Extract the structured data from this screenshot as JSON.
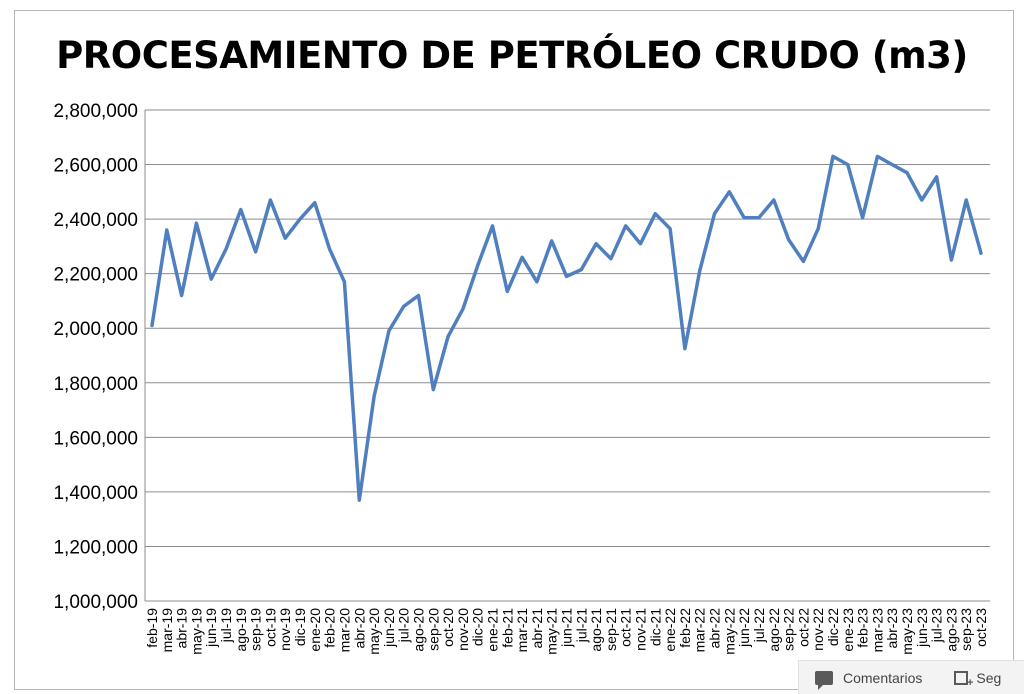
{
  "chart_data": {
    "type": "line",
    "title": "PROCESAMIENTO DE PETRÓLEO CRUDO (m3)",
    "xlabel": "",
    "ylabel": "",
    "ylim": [
      1000000,
      2800000
    ],
    "yticks": [
      "1,000,000",
      "1,200,000",
      "1,400,000",
      "1,600,000",
      "1,800,000",
      "2,000,000",
      "2,200,000",
      "2,400,000",
      "2,600,000",
      "2,800,000"
    ],
    "grid": true,
    "legend": "none",
    "color": "#4f7fbf",
    "categories": [
      "feb-19",
      "mar-19",
      "abr-19",
      "may-19",
      "jun-19",
      "jul-19",
      "ago-19",
      "sep-19",
      "oct-19",
      "nov-19",
      "dic-19",
      "ene-20",
      "feb-20",
      "mar-20",
      "abr-20",
      "may-20",
      "jun-20",
      "jul-20",
      "ago-20",
      "sep-20",
      "oct-20",
      "nov-20",
      "dic-20",
      "ene-21",
      "feb-21",
      "mar-21",
      "abr-21",
      "may-21",
      "jun-21",
      "jul-21",
      "ago-21",
      "sep-21",
      "oct-21",
      "nov-21",
      "dic-21",
      "ene-22",
      "feb-22",
      "mar-22",
      "abr-22",
      "may-22",
      "jun-22",
      "jul-22",
      "ago-22",
      "sep-22",
      "oct-22",
      "nov-22",
      "dic-22",
      "ene-23",
      "feb-23",
      "mar-23",
      "abr-23",
      "may-23",
      "jun-23",
      "jul-23",
      "ago-23",
      "sep-23",
      "oct-23"
    ],
    "values": [
      2010000,
      2360000,
      2120000,
      2385000,
      2180000,
      2290000,
      2435000,
      2280000,
      2470000,
      2330000,
      2400000,
      2460000,
      2290000,
      2170000,
      1370000,
      1750000,
      1990000,
      2080000,
      2120000,
      1775000,
      1970000,
      2070000,
      2230000,
      2375000,
      2135000,
      2260000,
      2170000,
      2320000,
      2190000,
      2215000,
      2310000,
      2255000,
      2375000,
      2310000,
      2420000,
      2365000,
      1925000,
      2210000,
      2420000,
      2500000,
      2405000,
      2405000,
      2470000,
      2325000,
      2245000,
      2365000,
      2630000,
      2600000,
      2405000,
      2630000,
      2600000,
      2570000,
      2470000,
      2555000,
      2250000,
      2470000,
      2275000
    ]
  },
  "ui": {
    "comments_label": "Comentarios",
    "follow_label": "Seg"
  }
}
